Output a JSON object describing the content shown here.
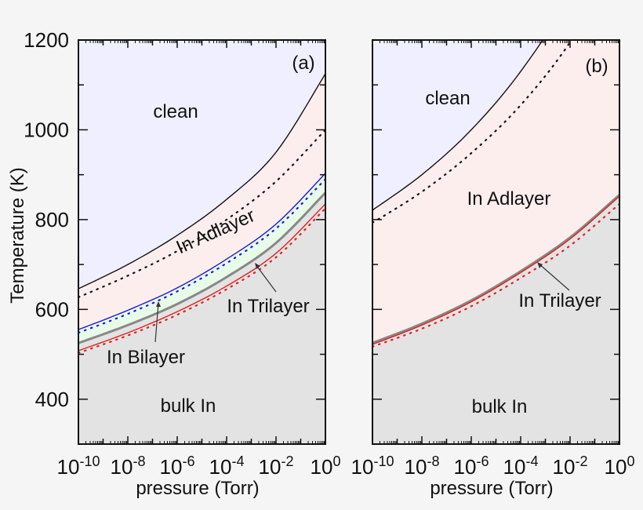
{
  "figure": {
    "y_axis_label": "Temperature (K)",
    "x_axis_label": "pressure (Torr)"
  },
  "colors": {
    "clean": "#efefff",
    "adlayer": "#fdeeee",
    "bilayer": "#e8fbe8",
    "bulk": "#e3e3e3",
    "clean_line": "#111111",
    "bilayer_line": "#1a1ad6",
    "gray_line": "#888888",
    "trilayer_line": "#e02020"
  },
  "chart_data": [
    {
      "type": "area",
      "panel_label": "(a)",
      "xlabel": "pressure (Torr)",
      "ylabel": "Temperature (K)",
      "xscale": "log",
      "xlim": [
        1e-10,
        1
      ],
      "ylim": [
        300,
        1200
      ],
      "x_tick_labels": [
        "10^-10",
        "10^-8",
        "10^-6",
        "10^-4",
        "10^-2",
        "10^0"
      ],
      "y_tick_labels": [
        "400",
        "600",
        "800",
        "1000",
        "1200"
      ],
      "grid": false,
      "region_labels": [
        "clean",
        "In Adlayer",
        "In Bilayer",
        "In Trilayer",
        "bulk In"
      ],
      "x_log10": [
        -10,
        -8,
        -6,
        -4,
        -2,
        0
      ],
      "series": [
        {
          "name": "clean / In Adlayer boundary",
          "style": "solid black",
          "values": [
            646,
            700,
            765,
            845,
            950,
            1125
          ]
        },
        {
          "name": "Adlayer (dotted)",
          "style": "dotted black",
          "values": [
            627,
            675,
            730,
            800,
            885,
            1000
          ]
        },
        {
          "name": "In Adlayer / In Bilayer boundary",
          "style": "solid blue",
          "values": [
            555,
            598,
            648,
            712,
            790,
            903
          ]
        },
        {
          "name": "Bilayer (dotted)",
          "style": "dotted blue",
          "values": [
            548,
            590,
            640,
            703,
            780,
            890
          ]
        },
        {
          "name": "In Bilayer / In Trilayer boundary",
          "style": "solid gray",
          "values": [
            525,
            565,
            612,
            672,
            748,
            860
          ]
        },
        {
          "name": "In Trilayer / bulk In boundary",
          "style": "solid red",
          "values": [
            508,
            548,
            595,
            652,
            725,
            835
          ]
        },
        {
          "name": "Trilayer (dotted)",
          "style": "dotted red",
          "values": [
            503,
            542,
            588,
            645,
            716,
            825
          ]
        }
      ]
    },
    {
      "type": "area",
      "panel_label": "(b)",
      "xlabel": "pressure (Torr)",
      "ylabel": "Temperature (K)",
      "xscale": "log",
      "xlim": [
        1e-10,
        1
      ],
      "ylim": [
        300,
        1200
      ],
      "x_tick_labels": [
        "10^-10",
        "10^-8",
        "10^-6",
        "10^-4",
        "10^-2",
        "10^0"
      ],
      "grid": false,
      "region_labels": [
        "clean",
        "In Adlayer",
        "In Trilayer",
        "bulk In"
      ],
      "x_log10": [
        -10,
        -8,
        -6,
        -4,
        -2,
        0
      ],
      "series": [
        {
          "name": "clean / In Adlayer boundary",
          "style": "solid black",
          "values": [
            821,
            900,
            1000,
            1130,
            1300,
            1530
          ]
        },
        {
          "name": "Adlayer (dotted)",
          "style": "dotted black",
          "values": [
            793,
            862,
            948,
            1055,
            1195,
            1380
          ]
        },
        {
          "name": "In Adlayer / In Trilayer boundary",
          "style": "solid gray",
          "values": [
            525,
            568,
            620,
            685,
            760,
            855
          ]
        },
        {
          "name": "In Trilayer / bulk In boundary",
          "style": "solid red",
          "values": [
            522,
            565,
            617,
            682,
            757,
            852
          ]
        },
        {
          "name": "Trilayer (dotted)",
          "style": "dotted red",
          "values": [
            517,
            557,
            607,
            670,
            742,
            835
          ]
        }
      ]
    }
  ],
  "panels": {
    "a": {
      "label": "(a)",
      "clean": "clean",
      "adlayer": "In Adlayer",
      "bilayer": "In Bilayer",
      "trilayer": "In Trilayer",
      "bulk": "bulk In"
    },
    "b": {
      "label": "(b)",
      "clean": "clean",
      "adlayer": "In Adlayer",
      "trilayer": "In Trilayer",
      "bulk": "bulk In"
    }
  },
  "ticks": {
    "y": [
      "400",
      "600",
      "800",
      "1000",
      "1200"
    ],
    "x_base": "10",
    "x_exp": [
      "-10",
      "-8",
      "-6",
      "-4",
      "-2",
      "0"
    ]
  }
}
